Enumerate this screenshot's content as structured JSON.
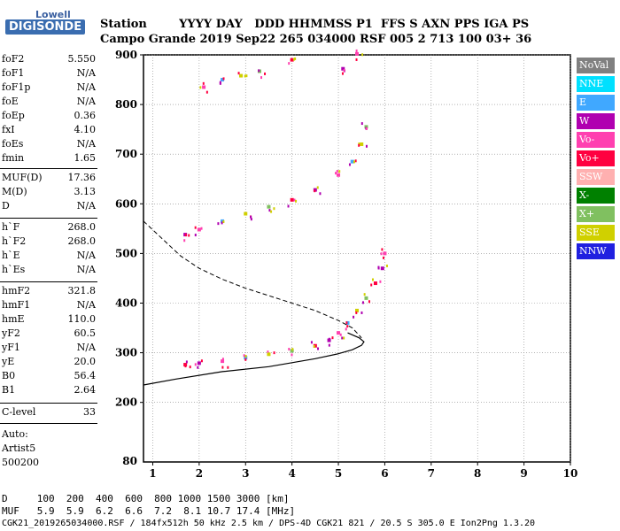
{
  "logo": {
    "top": "Lowell",
    "main": "DIGISONDE"
  },
  "header": {
    "row1": "Station        YYYY DAY   DDD HHMMSS P1  FFS S AXN PPS IGA PS",
    "row2": "Campo Grande 2019 Sep22 265 034000 RSF 005 2 713 100 03+ 36"
  },
  "params_group1": [
    {
      "name": "foF2",
      "value": "5.550"
    },
    {
      "name": "foF1",
      "value": "N/A"
    },
    {
      "name": "foF1p",
      "value": "N/A"
    },
    {
      "name": "foE",
      "value": "N/A"
    },
    {
      "name": "foEp",
      "value": "0.36"
    },
    {
      "name": "fxI",
      "value": "4.10"
    },
    {
      "name": "foEs",
      "value": "N/A"
    },
    {
      "name": "fmin",
      "value": "1.65"
    }
  ],
  "params_group2": [
    {
      "name": "MUF(D)",
      "value": "17.36"
    },
    {
      "name": "M(D)",
      "value": "3.13"
    },
    {
      "name": "D",
      "value": "N/A"
    }
  ],
  "params_group3": [
    {
      "name": "h`F",
      "value": "268.0"
    },
    {
      "name": "h`F2",
      "value": "268.0"
    },
    {
      "name": "h`E",
      "value": "N/A"
    },
    {
      "name": "h`Es",
      "value": "N/A"
    }
  ],
  "params_group4": [
    {
      "name": "hmF2",
      "value": "321.8"
    },
    {
      "name": "hmF1",
      "value": "N/A"
    },
    {
      "name": "hmE",
      "value": "110.0"
    },
    {
      "name": "yF2",
      "value": "60.5"
    },
    {
      "name": "yF1",
      "value": "N/A"
    },
    {
      "name": "yE",
      "value": "20.0"
    },
    {
      "name": "B0",
      "value": "56.4"
    },
    {
      "name": "B1",
      "value": "2.64"
    }
  ],
  "clevel": {
    "name": "C-level",
    "value": "33"
  },
  "auto": {
    "line1": "Auto:",
    "line2": "Artist5",
    "line3": "500200"
  },
  "legend": [
    {
      "label": "NoVal",
      "color": "#808080"
    },
    {
      "label": "NNE",
      "color": "#00e0ff"
    },
    {
      "label": "E",
      "color": "#40a8ff"
    },
    {
      "label": "W",
      "color": "#b000b0"
    },
    {
      "label": "Vo-",
      "color": "#ff40b0"
    },
    {
      "label": "Vo+",
      "color": "#ff0040"
    },
    {
      "label": "SSW",
      "color": "#ffb0b0"
    },
    {
      "label": "X-",
      "color": "#008000"
    },
    {
      "label": "X+",
      "color": "#80c060"
    },
    {
      "label": "SSE",
      "color": "#d0d000"
    },
    {
      "label": "NNW",
      "color": "#2020e0"
    }
  ],
  "footer": {
    "row1": "D     100  200  400  600  800 1000 1500 3000 [km]",
    "row2": "MUF   5.9  5.9  6.2  6.6  7.2  8.1 10.7 17.4 [MHz]",
    "row3": "CGK21_2019265034000.RSF / 184fx512h 50 kHz 2.5 km / DPS-4D CGK21 821 / 20.5 S 305.0 E Ion2Png 1.3.20"
  },
  "chart_data": {
    "type": "scatter",
    "xlim": [
      0.8,
      10
    ],
    "ylim": [
      80,
      900
    ],
    "x_ticks": [
      1,
      2,
      3,
      4,
      5,
      6,
      7,
      8,
      9,
      10
    ],
    "y_ticks": [
      200,
      300,
      400,
      500,
      600,
      700,
      800,
      900
    ],
    "y_tick_labels": [
      "200",
      "300",
      "400",
      "500",
      "600",
      "700",
      "800",
      "900"
    ],
    "grid": true,
    "series": [
      {
        "values": [
          [
            1.7,
            276
          ],
          [
            2.0,
            279
          ],
          [
            2.5,
            283
          ],
          [
            3.0,
            290
          ],
          [
            3.5,
            297
          ],
          [
            4.0,
            304
          ],
          [
            4.5,
            314
          ],
          [
            4.8,
            325
          ],
          [
            5.0,
            340
          ],
          [
            5.2,
            360
          ],
          [
            5.4,
            385
          ],
          [
            5.6,
            410
          ],
          [
            5.8,
            440
          ],
          [
            5.95,
            470
          ],
          [
            6.0,
            500
          ]
        ]
      },
      {
        "values": [
          [
            1.7,
            538
          ],
          [
            2.0,
            548
          ],
          [
            2.5,
            565
          ],
          [
            3.0,
            580
          ],
          [
            3.5,
            594
          ],
          [
            4.0,
            608
          ],
          [
            4.5,
            628
          ],
          [
            5.0,
            658
          ],
          [
            5.3,
            685
          ],
          [
            5.5,
            720
          ],
          [
            5.6,
            755
          ]
        ]
      },
      {
        "values": [
          [
            2.1,
            835
          ],
          [
            2.5,
            850
          ],
          [
            2.9,
            858
          ],
          [
            3.3,
            867
          ],
          [
            4.0,
            890
          ],
          [
            5.1,
            872
          ],
          [
            5.4,
            902
          ]
        ]
      }
    ],
    "real_height_profile": [
      [
        0.8,
        235
      ],
      [
        1.5,
        247
      ],
      [
        2.5,
        262
      ],
      [
        3.5,
        272
      ],
      [
        4.0,
        280
      ],
      [
        4.5,
        288
      ],
      [
        5.0,
        298
      ],
      [
        5.3,
        306
      ],
      [
        5.5,
        315
      ],
      [
        5.55,
        322
      ],
      [
        5.45,
        330
      ],
      [
        5.2,
        340
      ]
    ],
    "muf_curve": [
      [
        0.8,
        565
      ],
      [
        1.2,
        530
      ],
      [
        1.6,
        495
      ],
      [
        2.0,
        470
      ],
      [
        2.5,
        448
      ],
      [
        3.0,
        430
      ],
      [
        3.5,
        415
      ],
      [
        4.0,
        400
      ],
      [
        4.5,
        385
      ],
      [
        5.0,
        365
      ],
      [
        5.3,
        350
      ],
      [
        5.5,
        330
      ]
    ]
  }
}
